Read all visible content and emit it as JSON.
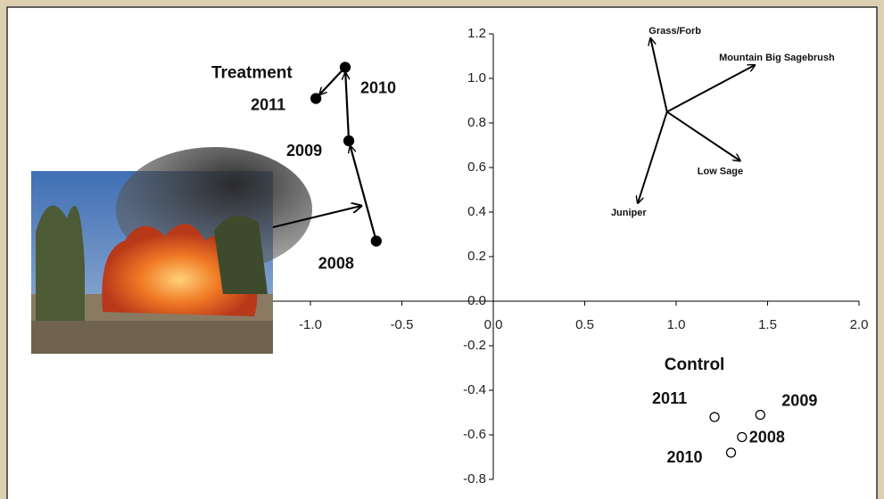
{
  "chart_data": {
    "type": "scatter",
    "xlim": [
      -1.5,
      2.0
    ],
    "ylim": [
      -0.8,
      1.2
    ],
    "xticks": [
      {
        "value": -1.0,
        "label": "-1.0"
      },
      -0.5,
      {
        "value": 0.0,
        "label": "0.0"
      },
      0.5,
      {
        "value": 1.0,
        "label": "1.0"
      },
      1.5,
      {
        "value": 2.0,
        "label": "2.0"
      }
    ],
    "yticks": [
      1.2,
      {
        "value": 1.0,
        "label": "1.0"
      },
      0.8,
      0.6,
      0.4,
      0.2,
      {
        "value": 0.0,
        "label": "0.0"
      },
      -0.2,
      -0.4,
      -0.6,
      -0.8
    ],
    "series": [
      {
        "name": "Treatment",
        "marker": "filled",
        "color": "#000000",
        "connected": true,
        "x": [
          -0.64,
          -0.79,
          -0.81,
          -0.97
        ],
        "y": [
          0.27,
          0.72,
          1.05,
          0.91
        ],
        "labels": [
          "2008",
          "2009",
          "2010",
          "2011"
        ]
      },
      {
        "name": "Control",
        "marker": "open",
        "color": "#000000",
        "connected": false,
        "x": [
          1.36,
          1.46,
          1.3,
          1.21
        ],
        "y": [
          -0.61,
          -0.51,
          -0.68,
          -0.52
        ],
        "labels": [
          "2008",
          "2009",
          "2010",
          "2011"
        ]
      }
    ],
    "vectors": {
      "origin": [
        0.95,
        0.85
      ],
      "items": [
        {
          "label": "Grass/Forb",
          "x": 0.86,
          "y": 1.18
        },
        {
          "label": "Mountain Big Sagebrush",
          "x": 1.43,
          "y": 1.06
        },
        {
          "label": "Low Sage",
          "x": 1.35,
          "y": 0.63
        },
        {
          "label": "Juniper",
          "x": 0.79,
          "y": 0.44
        }
      ]
    }
  }
}
